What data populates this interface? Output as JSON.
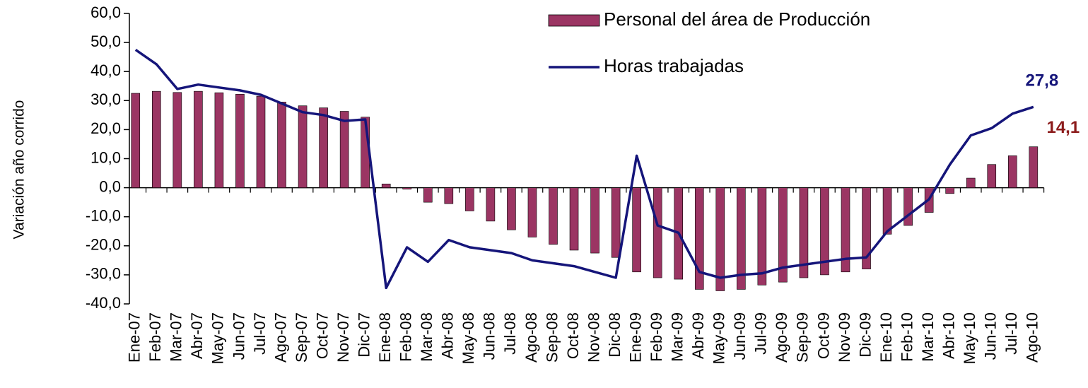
{
  "chart_data": {
    "type": "bar_line",
    "y_label": "Variación año corrido",
    "categories": [
      "Ene-07",
      "Feb-07",
      "Mar-07",
      "Abr-07",
      "May-07",
      "Jun-07",
      "Jul-07",
      "Ago-07",
      "Sep-07",
      "Oct-07",
      "Nov-07",
      "Dic-07",
      "Ene-08",
      "Feb-08",
      "Mar-08",
      "Abr-08",
      "May-08",
      "Jun-08",
      "Jul-08",
      "Ago-08",
      "Sep-08",
      "Oct-08",
      "Nov-08",
      "Dic-08",
      "Ene-09",
      "Feb-09",
      "Mar-09",
      "Abr-09",
      "May-09",
      "Jun-09",
      "Jul-09",
      "Ago-09",
      "Sep-09",
      "Oct-09",
      "Nov-09",
      "Dic-09",
      "Ene-10",
      "Feb-10",
      "Mar-10",
      "Abr-10",
      "May-10",
      "Jun-10",
      "Jul-10",
      "Ago-10"
    ],
    "series": [
      {
        "name": "Personal del área de Producción",
        "kind": "bar",
        "color": "#9b3563",
        "values": [
          32.5,
          33.2,
          32.8,
          33.2,
          32.7,
          32.2,
          31.5,
          29.5,
          28.2,
          27.5,
          26.3,
          24.3,
          1.3,
          -0.5,
          -5,
          -5.5,
          -8,
          -11.5,
          -14.5,
          -17,
          -19.5,
          -21.5,
          -22.5,
          -24,
          -29,
          -31,
          -31.5,
          -35,
          -35.5,
          -35,
          -33.5,
          -32.5,
          -31,
          -30,
          -29,
          -28,
          -16,
          -13,
          -8.5,
          -2,
          3.3,
          8,
          11,
          14.1
        ]
      },
      {
        "name": "Horas trabajadas",
        "kind": "line",
        "color": "#15157a",
        "values": [
          47.5,
          42.5,
          34,
          35.5,
          34.5,
          33.5,
          32,
          29,
          26,
          25,
          23,
          23.5,
          -34.5,
          -20.5,
          -25.5,
          -18,
          -20.5,
          -21.5,
          -22.5,
          -25,
          -26,
          -27,
          -29,
          -31,
          11,
          -13,
          -15.5,
          -29,
          -31,
          -30,
          -29.5,
          -27.5,
          -26.5,
          -25.5,
          -24.5,
          -24,
          -15,
          -9.5,
          -4,
          8,
          18,
          20.5,
          25.5,
          27.8
        ]
      }
    ],
    "annotations": [
      {
        "text": "27,8",
        "series": 1,
        "color": "#15157a"
      },
      {
        "text": "14,1",
        "series": 0,
        "color": "#8b1a1a"
      }
    ],
    "ylim": [
      -40,
      60
    ],
    "yticks": [
      {
        "value": -40,
        "label": "-40,0"
      },
      {
        "value": -30,
        "label": "-30,0"
      },
      {
        "value": -20,
        "label": "-20,0"
      },
      {
        "value": -10,
        "label": "-10,0"
      },
      {
        "value": 0,
        "label": "0,0"
      },
      {
        "value": 10,
        "label": "10,0"
      },
      {
        "value": 20,
        "label": "20,0"
      },
      {
        "value": 30,
        "label": "30,0"
      },
      {
        "value": 40,
        "label": "40,0"
      },
      {
        "value": 50,
        "label": "50,0"
      },
      {
        "value": 60,
        "label": "60,0"
      }
    ],
    "legend": "top-right"
  }
}
